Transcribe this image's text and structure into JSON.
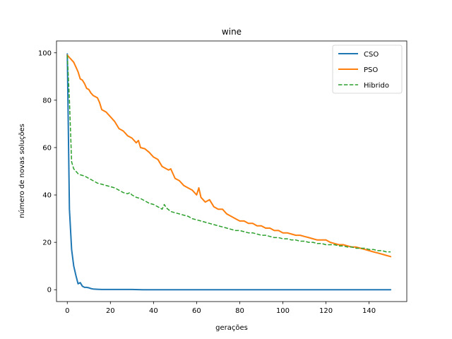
{
  "chart_data": {
    "type": "line",
    "title": "wine",
    "xlabel": "gerações",
    "ylabel": "número de novas soluções",
    "xlim": [
      -5,
      157.5
    ],
    "ylim": [
      -5,
      105
    ],
    "xticks": [
      0,
      20,
      40,
      60,
      80,
      100,
      120,
      140
    ],
    "yticks": [
      0,
      20,
      40,
      60,
      80,
      100
    ],
    "grid": false,
    "legend_position": "top-right",
    "series": [
      {
        "name": "CSO",
        "color": "#1f77b4",
        "style": "solid",
        "x": [
          0,
          1,
          2,
          3,
          4,
          5,
          6,
          7,
          8,
          9,
          10,
          11,
          12,
          14,
          16,
          20,
          25,
          30,
          35,
          40,
          50,
          60,
          70,
          80,
          90,
          100,
          110,
          120,
          130,
          140,
          150
        ],
        "y": [
          99.5,
          34,
          17,
          10,
          6,
          2.5,
          3,
          1.5,
          1,
          1,
          0.8,
          0.5,
          0.3,
          0.2,
          0.1,
          0.1,
          0.1,
          0.1,
          0,
          0,
          0,
          0,
          0,
          0,
          0,
          0,
          0,
          0,
          0,
          0,
          0
        ]
      },
      {
        "name": "PSO",
        "color": "#ff7f0e",
        "style": "solid",
        "x": [
          0,
          1,
          2,
          3,
          4,
          5,
          6,
          7,
          8,
          9,
          10,
          11,
          12,
          14,
          15,
          16,
          18,
          20,
          22,
          24,
          26,
          28,
          30,
          32,
          33,
          34,
          36,
          38,
          40,
          42,
          44,
          46,
          47,
          48,
          50,
          52,
          54,
          56,
          58,
          60,
          61,
          62,
          64,
          66,
          68,
          70,
          72,
          74,
          76,
          78,
          80,
          82,
          84,
          86,
          88,
          90,
          92,
          94,
          96,
          98,
          100,
          102,
          104,
          106,
          108,
          110,
          112,
          114,
          116,
          118,
          120,
          122,
          124,
          126,
          128,
          130,
          132,
          134,
          136,
          138,
          140,
          142,
          144,
          146,
          148,
          150
        ],
        "y": [
          99,
          98,
          97,
          96,
          94,
          92,
          89,
          88.5,
          87,
          85,
          84.5,
          83,
          82,
          81,
          79,
          76,
          75,
          73,
          71,
          68,
          67,
          65,
          64,
          62,
          63,
          60,
          59.5,
          58,
          56,
          55,
          52,
          51,
          50.5,
          51,
          47,
          46,
          44,
          43,
          42,
          40,
          43,
          39,
          37,
          38,
          35,
          34,
          34,
          32,
          31,
          30,
          29,
          29,
          28,
          28,
          27,
          27,
          26,
          26,
          25,
          25,
          24,
          24,
          23.5,
          23,
          23,
          22.5,
          22,
          21.5,
          21,
          21,
          21,
          20,
          19.5,
          19,
          19,
          18.5,
          18,
          18,
          17.5,
          17,
          16.5,
          16,
          15.5,
          15,
          14.5,
          14
        ]
      },
      {
        "name": "Hibrido",
        "color": "#2ca02c",
        "style": "dashed",
        "x": [
          0,
          1,
          2,
          3,
          4,
          5,
          6,
          8,
          10,
          12,
          14,
          16,
          18,
          20,
          22,
          24,
          26,
          28,
          29,
          30,
          32,
          34,
          36,
          38,
          40,
          42,
          44,
          45,
          46,
          48,
          50,
          52,
          54,
          56,
          58,
          60,
          62,
          64,
          66,
          68,
          70,
          72,
          74,
          76,
          78,
          80,
          82,
          84,
          86,
          88,
          90,
          92,
          94,
          96,
          98,
          100,
          102,
          104,
          106,
          108,
          110,
          112,
          114,
          116,
          118,
          120,
          122,
          124,
          126,
          128,
          130,
          132,
          134,
          136,
          138,
          140,
          142,
          144,
          146,
          148,
          150
        ],
        "y": [
          99,
          80,
          54,
          51,
          50,
          49,
          48.5,
          48,
          47,
          46,
          45,
          44.5,
          44,
          43.5,
          43,
          42,
          41,
          40.5,
          41,
          40,
          39,
          38.5,
          37.5,
          36.5,
          36,
          35,
          34,
          36,
          34.5,
          33,
          32.5,
          32,
          31.5,
          31,
          30,
          29.5,
          29,
          28.5,
          28,
          27.5,
          27,
          26.5,
          26,
          25.5,
          25,
          25,
          24.5,
          24,
          24,
          23.5,
          23,
          23,
          22.5,
          22,
          22,
          21.5,
          21.5,
          21,
          21,
          20.5,
          20.5,
          20,
          20,
          19.5,
          19.5,
          19,
          19,
          19,
          18.5,
          18.5,
          18,
          18,
          17.5,
          17.5,
          17.5,
          17,
          17,
          16.5,
          16.5,
          16,
          16
        ]
      }
    ]
  }
}
